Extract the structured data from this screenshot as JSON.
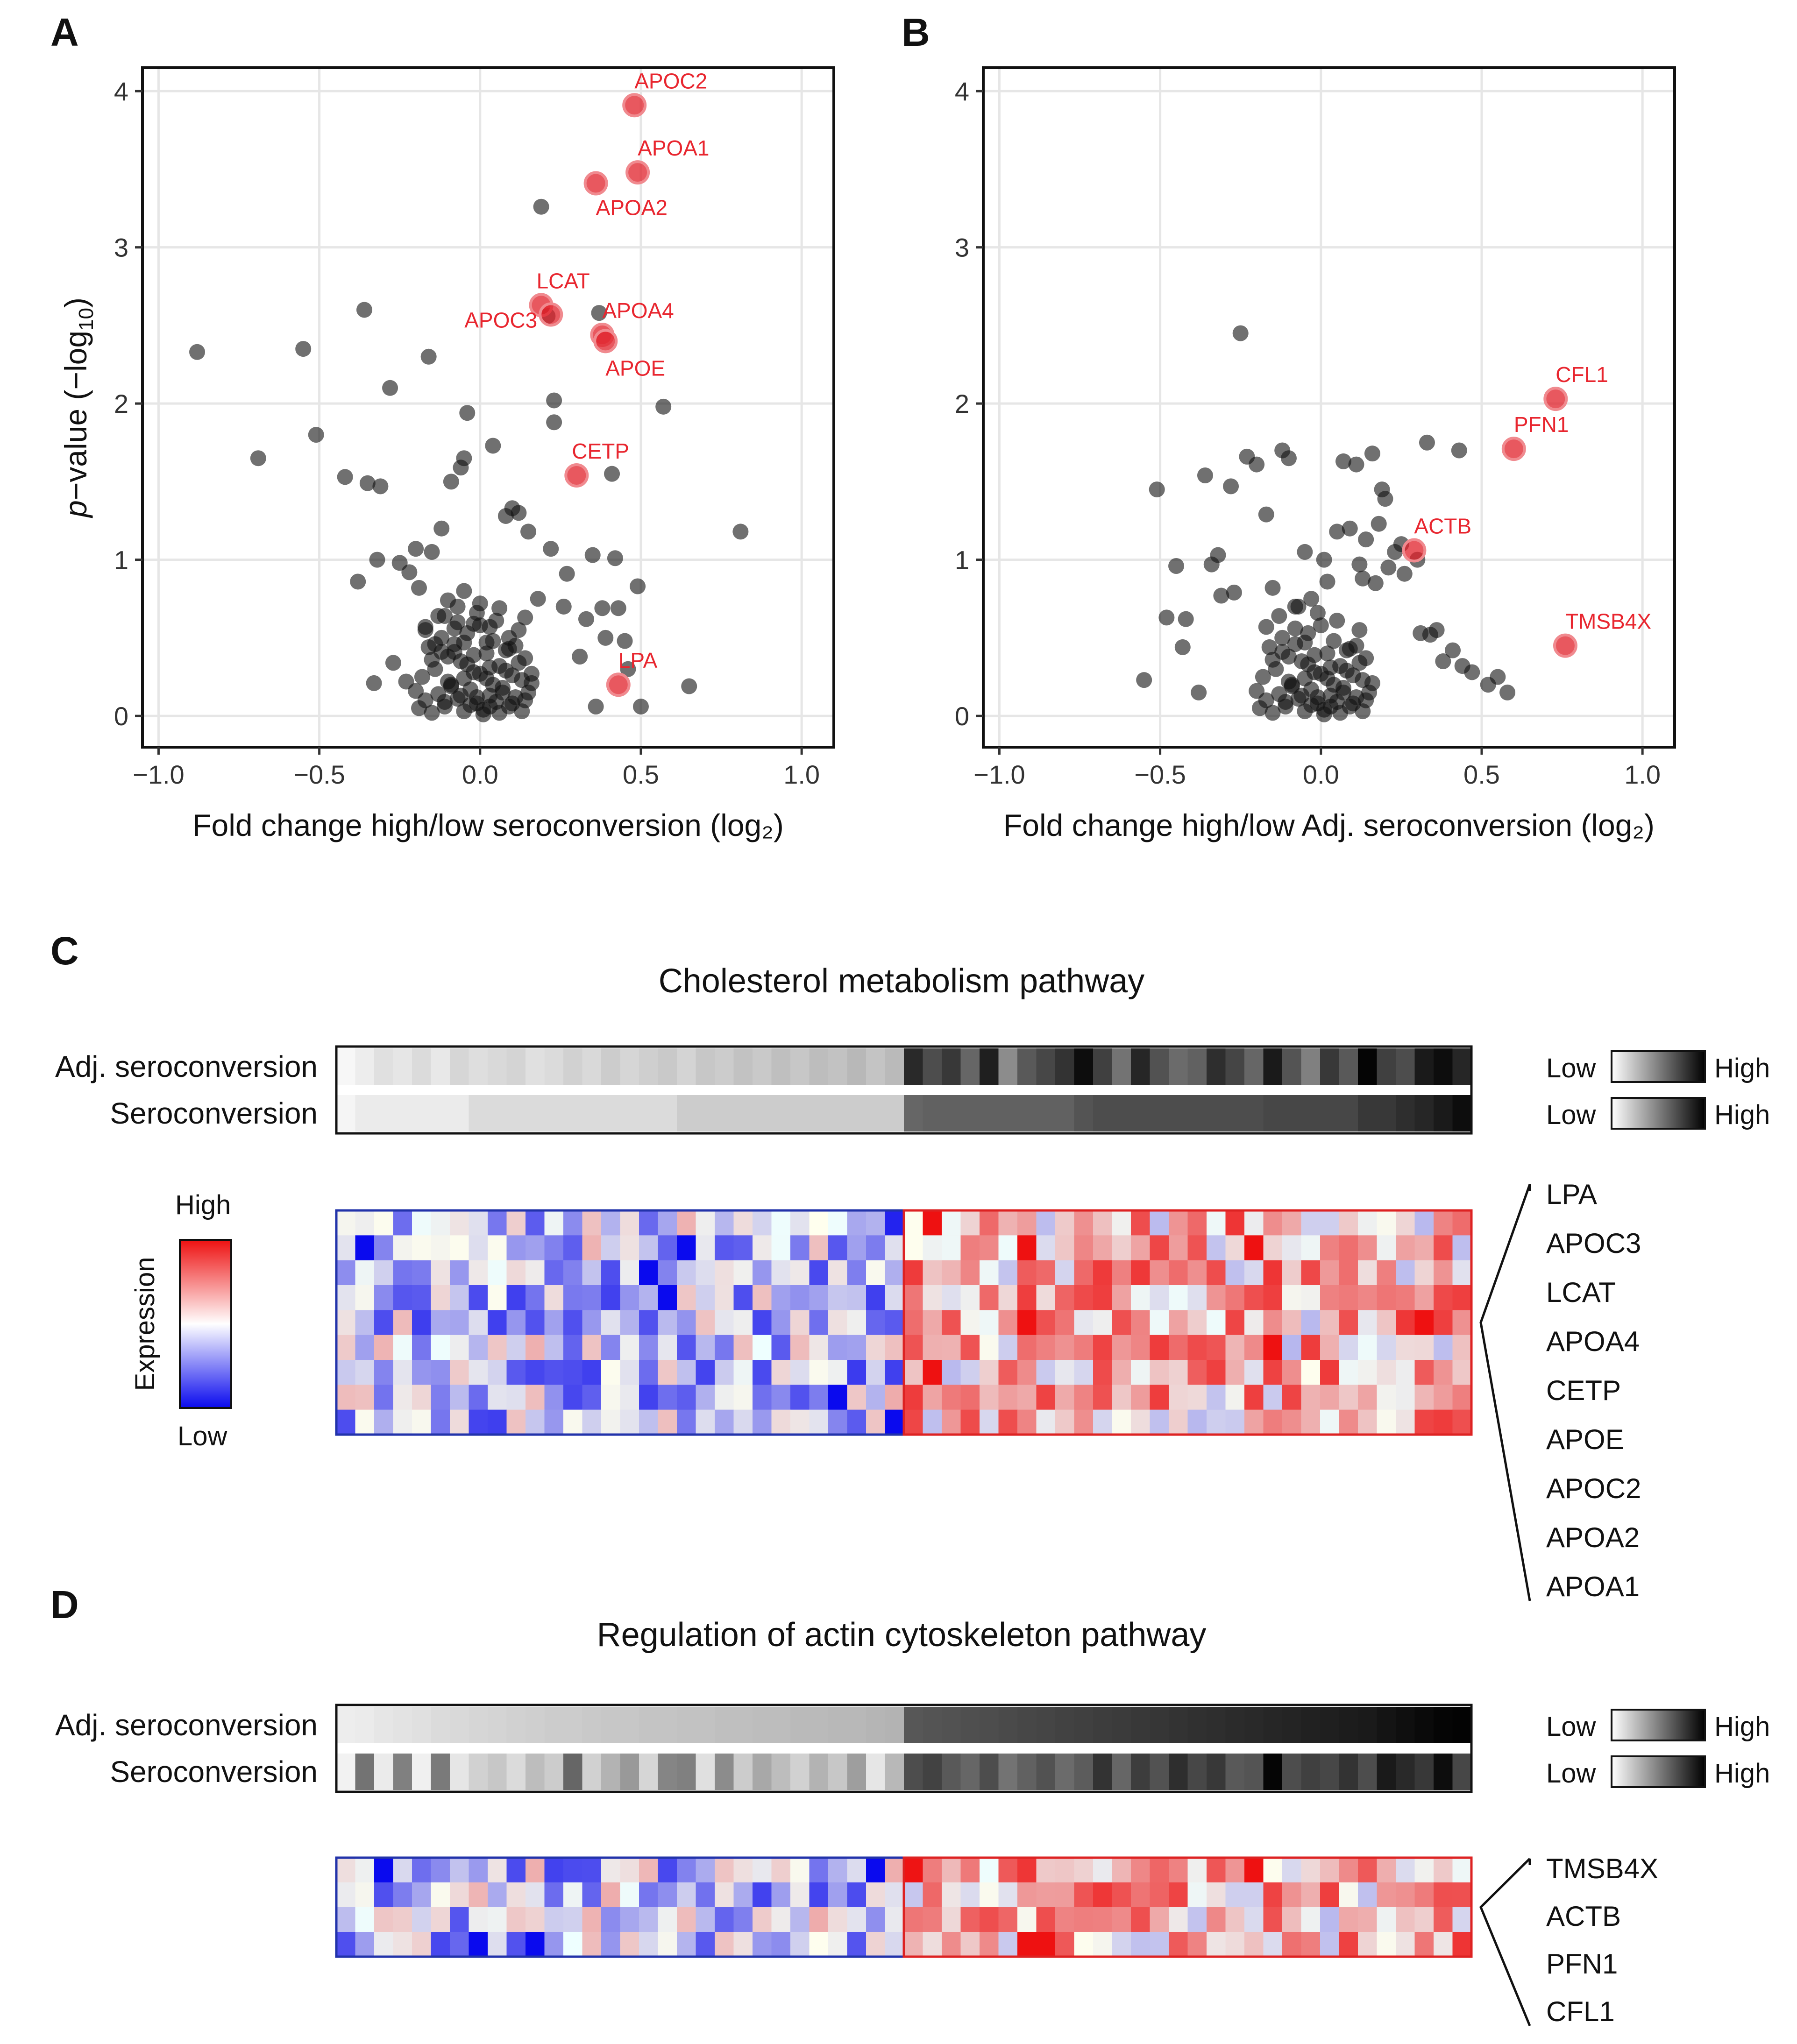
{
  "colors": {
    "point_black": "#111111",
    "point_red": "#e0202a",
    "label_red": "#e8262f",
    "grid": "#e6e6e6",
    "high_red": "#ee1111",
    "low_blue": "#0a0aee",
    "mid": "#ffffff",
    "group_low_frame": "#2233aa",
    "group_high_frame": "#dd2222"
  },
  "chart_data": [
    {
      "panel": "A",
      "type": "scatter",
      "xlabel": "Fold change high/low seroconversion (log₂)",
      "ylabel": "p−value (−log10)",
      "xlim": [
        -1.05,
        1.1
      ],
      "ylim": [
        -0.2,
        4.15
      ],
      "xticks": [
        -1.0,
        -0.5,
        0.0,
        0.5,
        1.0
      ],
      "xtick_labels": [
        "−1.0",
        "−0.5",
        "0.0",
        "0.5",
        "1.0"
      ],
      "yticks": [
        0,
        1,
        2,
        3,
        4
      ],
      "ytick_labels": [
        "0",
        "1",
        "2",
        "3",
        "4"
      ],
      "grid": true,
      "highlighted": [
        {
          "label": "APOC2",
          "x": 0.48,
          "y": 3.91
        },
        {
          "label": "APOA1",
          "x": 0.49,
          "y": 3.48
        },
        {
          "label": "APOA2",
          "x": 0.36,
          "y": 3.41
        },
        {
          "label": "LCAT",
          "x": 0.19,
          "y": 2.63
        },
        {
          "label": "APOC3",
          "x": 0.22,
          "y": 2.57
        },
        {
          "label": "APOA4",
          "x": 0.38,
          "y": 2.44
        },
        {
          "label": "APOE",
          "x": 0.39,
          "y": 2.4
        },
        {
          "label": "CETP",
          "x": 0.3,
          "y": 1.54
        },
        {
          "label": "LPA",
          "x": 0.43,
          "y": 0.2
        }
      ],
      "other_points": {
        "x": [
          -0.88,
          -0.69,
          -0.55,
          -0.51,
          -0.42,
          -0.36,
          -0.35,
          -0.31,
          -0.28,
          -0.16,
          -0.04,
          -0.05,
          -0.06,
          0.04,
          0.19,
          0.21,
          0.23,
          0.23,
          0.37,
          0.41,
          0.42,
          0.49,
          0.57,
          0.65,
          0.81,
          0.12,
          0.1,
          0.08,
          -0.09,
          -0.12,
          -0.15,
          -0.2,
          -0.25,
          -0.38,
          -0.32,
          -0.22,
          -0.19,
          -0.1,
          -0.05,
          0.0,
          0.06,
          0.14,
          0.18,
          0.27,
          0.33,
          0.35,
          0.38,
          0.45,
          0.5,
          -0.33,
          -0.27,
          -0.23,
          -0.14,
          -0.08,
          0.02,
          0.09,
          0.16,
          0.31,
          0.43,
          0.36,
          0.15,
          0.03,
          -0.02,
          -0.07,
          -0.11,
          -0.17,
          0.22,
          0.26,
          0.46,
          0.39
        ],
        "y": [
          2.33,
          1.65,
          2.35,
          1.8,
          1.53,
          2.6,
          1.49,
          1.47,
          2.1,
          2.3,
          1.94,
          1.65,
          1.59,
          1.73,
          3.26,
          2.56,
          2.02,
          1.88,
          2.58,
          1.55,
          1.01,
          0.83,
          1.98,
          0.19,
          1.18,
          1.3,
          1.33,
          1.28,
          1.5,
          1.2,
          1.05,
          1.07,
          0.98,
          0.86,
          1.0,
          0.92,
          0.82,
          0.74,
          0.8,
          0.72,
          0.69,
          0.63,
          0.75,
          0.91,
          0.62,
          1.03,
          0.69,
          0.48,
          0.06,
          0.21,
          0.34,
          0.22,
          0.46,
          0.41,
          0.47,
          0.5,
          0.27,
          0.38,
          0.69,
          0.06,
          1.18,
          0.57,
          0.59,
          0.6,
          0.64,
          0.55,
          1.07,
          0.7,
          0.3,
          0.5
        ]
      },
      "dense_cluster_points": {
        "x": [
          -0.19,
          -0.17,
          -0.15,
          -0.13,
          -0.11,
          -0.09,
          -0.07,
          -0.05,
          -0.03,
          -0.01,
          0.01,
          0.03,
          0.05,
          0.07,
          0.09,
          0.11,
          0.13,
          0.15,
          -0.18,
          -0.14,
          -0.1,
          -0.06,
          -0.02,
          0.02,
          0.06,
          0.1,
          0.14,
          -0.16,
          -0.12,
          -0.08,
          -0.04,
          0.0,
          0.04,
          0.08,
          0.12,
          -0.2,
          0.16,
          -0.13,
          -0.07,
          -0.01,
          0.05,
          0.11,
          -0.1,
          -0.04,
          0.02,
          0.08,
          -0.15,
          -0.09,
          -0.03,
          0.03,
          0.09,
          0.13,
          -0.06,
          0.0,
          0.06,
          -0.11,
          -0.05,
          0.01,
          0.07,
          -0.02,
          0.04,
          -0.08,
          0.1,
          -0.12,
          0.12,
          -0.17,
          0.14,
          -0.01,
          0.03,
          -0.05
        ],
        "y": [
          0.05,
          0.1,
          0.02,
          0.14,
          0.06,
          0.2,
          0.11,
          0.03,
          0.17,
          0.08,
          0.04,
          0.13,
          0.09,
          0.18,
          0.06,
          0.12,
          0.03,
          0.15,
          0.25,
          0.3,
          0.22,
          0.35,
          0.28,
          0.4,
          0.32,
          0.26,
          0.37,
          0.44,
          0.5,
          0.46,
          0.53,
          0.58,
          0.48,
          0.42,
          0.55,
          0.16,
          0.21,
          0.64,
          0.7,
          0.66,
          0.61,
          0.45,
          0.38,
          0.33,
          0.24,
          0.29,
          0.36,
          0.19,
          0.07,
          0.31,
          0.43,
          0.23,
          0.13,
          0.27,
          0.02,
          0.09,
          0.47,
          0.01,
          0.15,
          0.39,
          0.2,
          0.56,
          0.08,
          0.41,
          0.34,
          0.57,
          0.1,
          0.12,
          0.06,
          0.24
        ]
      }
    },
    {
      "panel": "B",
      "type": "scatter",
      "xlabel": "Fold change high/low Adj. seroconversion (log₂)",
      "ylabel": "",
      "xlim": [
        -1.05,
        1.1
      ],
      "ylim": [
        -0.2,
        4.15
      ],
      "xticks": [
        -1.0,
        -0.5,
        0.0,
        0.5,
        1.0
      ],
      "xtick_labels": [
        "−1.0",
        "−0.5",
        "0.0",
        "0.5",
        "1.0"
      ],
      "yticks": [
        0,
        1,
        2,
        3,
        4
      ],
      "ytick_labels": [
        "0",
        "1",
        "2",
        "3",
        "4"
      ],
      "grid": true,
      "highlighted": [
        {
          "label": "CFL1",
          "x": 0.73,
          "y": 2.03
        },
        {
          "label": "PFN1",
          "x": 0.6,
          "y": 1.71
        },
        {
          "label": "ACTB",
          "x": 0.29,
          "y": 1.06
        },
        {
          "label": "TMSB4X",
          "x": 0.76,
          "y": 0.45
        }
      ],
      "other_points": {
        "x": [
          -0.25,
          -0.51,
          -0.45,
          -0.42,
          -0.36,
          -0.32,
          -0.28,
          -0.23,
          -0.2,
          -0.17,
          -0.12,
          -0.1,
          0.07,
          0.11,
          0.16,
          0.19,
          0.2,
          0.33,
          0.43,
          0.05,
          0.09,
          0.14,
          0.18,
          0.25,
          0.34,
          0.41,
          0.55,
          0.58,
          0.52,
          0.47,
          0.44,
          0.36,
          0.31,
          -0.55,
          -0.48,
          -0.43,
          -0.38,
          -0.34,
          -0.31,
          -0.27,
          0.21,
          0.26,
          0.3,
          0.38,
          0.23,
          0.13,
          0.02,
          -0.03,
          -0.08,
          -0.15,
          0.01,
          -0.05,
          0.12,
          0.17
        ],
        "y": [
          2.45,
          1.45,
          0.96,
          0.62,
          1.54,
          1.03,
          1.47,
          1.66,
          1.61,
          1.29,
          1.7,
          1.65,
          1.63,
          1.61,
          1.68,
          1.45,
          1.39,
          1.75,
          1.7,
          1.18,
          1.2,
          1.13,
          1.23,
          1.1,
          0.52,
          0.42,
          0.25,
          0.15,
          0.2,
          0.28,
          0.32,
          0.55,
          0.53,
          0.23,
          0.63,
          0.44,
          0.15,
          0.97,
          0.77,
          0.79,
          0.95,
          0.91,
          1.0,
          0.35,
          1.05,
          0.88,
          0.86,
          0.75,
          0.7,
          0.82,
          1.0,
          1.05,
          0.97,
          0.85
        ]
      },
      "dense_cluster_points": {
        "x": [
          -0.19,
          -0.17,
          -0.15,
          -0.13,
          -0.11,
          -0.09,
          -0.07,
          -0.05,
          -0.03,
          -0.01,
          0.01,
          0.03,
          0.05,
          0.07,
          0.09,
          0.11,
          0.13,
          0.15,
          -0.18,
          -0.14,
          -0.1,
          -0.06,
          -0.02,
          0.02,
          0.06,
          0.1,
          0.14,
          -0.16,
          -0.12,
          -0.08,
          -0.04,
          0.0,
          0.04,
          0.08,
          0.12,
          -0.2,
          0.16,
          -0.13,
          -0.07,
          -0.01,
          0.05,
          0.11,
          -0.1,
          -0.04,
          0.02,
          0.08,
          -0.15,
          -0.09,
          -0.03,
          0.03,
          0.09,
          0.13,
          -0.06,
          0.0,
          0.06,
          -0.11,
          -0.05,
          0.01,
          0.07,
          -0.02,
          0.04,
          -0.08,
          0.1,
          -0.12,
          0.12,
          -0.17,
          0.14,
          -0.01,
          0.03,
          -0.05
        ],
        "y": [
          0.05,
          0.1,
          0.02,
          0.14,
          0.06,
          0.2,
          0.11,
          0.03,
          0.17,
          0.08,
          0.04,
          0.13,
          0.09,
          0.18,
          0.06,
          0.12,
          0.03,
          0.15,
          0.25,
          0.3,
          0.22,
          0.35,
          0.28,
          0.4,
          0.32,
          0.26,
          0.37,
          0.44,
          0.5,
          0.46,
          0.53,
          0.58,
          0.48,
          0.42,
          0.55,
          0.16,
          0.21,
          0.64,
          0.7,
          0.66,
          0.61,
          0.45,
          0.38,
          0.33,
          0.24,
          0.29,
          0.36,
          0.19,
          0.07,
          0.31,
          0.43,
          0.23,
          0.13,
          0.27,
          0.02,
          0.09,
          0.47,
          0.01,
          0.15,
          0.39,
          0.2,
          0.56,
          0.08,
          0.41,
          0.34,
          0.57,
          0.1,
          0.12,
          0.06,
          0.24
        ]
      }
    },
    {
      "panel": "C",
      "type": "heatmap",
      "title": "Cholesterol metabolism pathway",
      "annotation_rows": [
        "Adj. seroconversion",
        "Seroconversion"
      ],
      "genes": [
        "LPA",
        "APOC3",
        "LCAT",
        "APOA4",
        "CETP",
        "APOE",
        "APOC2",
        "APOA2",
        "APOA1"
      ],
      "n_samples": 60,
      "n_low_group": 30,
      "adj_seroconversion_gray": [
        0.97,
        0.93,
        0.88,
        0.9,
        0.86,
        0.91,
        0.84,
        0.87,
        0.85,
        0.83,
        0.88,
        0.86,
        0.82,
        0.85,
        0.8,
        0.84,
        0.81,
        0.79,
        0.83,
        0.78,
        0.8,
        0.76,
        0.79,
        0.75,
        0.78,
        0.74,
        0.76,
        0.72,
        0.77,
        0.73,
        0.16,
        0.3,
        0.22,
        0.4,
        0.12,
        0.55,
        0.35,
        0.28,
        0.2,
        0.05,
        0.25,
        0.45,
        0.15,
        0.32,
        0.42,
        0.38,
        0.18,
        0.27,
        0.4,
        0.1,
        0.33,
        0.5,
        0.22,
        0.35,
        0.02,
        0.25,
        0.3,
        0.1,
        0.05,
        0.15
      ],
      "seroconversion_gray": [
        0.96,
        0.92,
        0.92,
        0.92,
        0.92,
        0.92,
        0.92,
        0.86,
        0.86,
        0.86,
        0.86,
        0.86,
        0.86,
        0.86,
        0.86,
        0.86,
        0.86,
        0.86,
        0.8,
        0.8,
        0.8,
        0.8,
        0.8,
        0.8,
        0.8,
        0.8,
        0.8,
        0.8,
        0.8,
        0.8,
        0.4,
        0.38,
        0.38,
        0.38,
        0.38,
        0.38,
        0.38,
        0.38,
        0.38,
        0.33,
        0.3,
        0.3,
        0.3,
        0.3,
        0.3,
        0.3,
        0.3,
        0.3,
        0.3,
        0.28,
        0.28,
        0.28,
        0.28,
        0.28,
        0.22,
        0.22,
        0.18,
        0.15,
        0.1,
        0.05
      ],
      "legend": {
        "high": "High",
        "low": "Low",
        "label": "Expression"
      }
    },
    {
      "panel": "D",
      "type": "heatmap",
      "title": "Regulation of actin cytoskeleton pathway",
      "annotation_rows": [
        "Adj. seroconversion",
        "Seroconversion"
      ],
      "genes": [
        "TMSB4X",
        "ACTB",
        "PFN1",
        "CFL1"
      ],
      "n_samples": 60,
      "n_low_group": 30,
      "adj_seroconversion_gray": [
        0.93,
        0.92,
        0.9,
        0.89,
        0.88,
        0.86,
        0.85,
        0.84,
        0.83,
        0.82,
        0.81,
        0.8,
        0.8,
        0.79,
        0.78,
        0.78,
        0.77,
        0.77,
        0.76,
        0.76,
        0.75,
        0.75,
        0.74,
        0.74,
        0.73,
        0.73,
        0.72,
        0.72,
        0.71,
        0.7,
        0.34,
        0.33,
        0.32,
        0.31,
        0.3,
        0.29,
        0.28,
        0.27,
        0.26,
        0.25,
        0.24,
        0.23,
        0.22,
        0.21,
        0.2,
        0.19,
        0.18,
        0.17,
        0.16,
        0.15,
        0.14,
        0.13,
        0.12,
        0.11,
        0.1,
        0.08,
        0.06,
        0.04,
        0.02,
        0.01
      ],
      "seroconversion_gray": [
        0.95,
        0.45,
        0.92,
        0.5,
        0.94,
        0.48,
        0.9,
        0.82,
        0.78,
        0.86,
        0.74,
        0.8,
        0.4,
        0.82,
        0.7,
        0.6,
        0.84,
        0.52,
        0.5,
        0.88,
        0.55,
        0.8,
        0.66,
        0.74,
        0.82,
        0.7,
        0.78,
        0.62,
        0.9,
        0.72,
        0.3,
        0.26,
        0.35,
        0.4,
        0.3,
        0.45,
        0.38,
        0.32,
        0.42,
        0.36,
        0.2,
        0.4,
        0.24,
        0.32,
        0.18,
        0.28,
        0.22,
        0.35,
        0.33,
        0.02,
        0.3,
        0.25,
        0.28,
        0.2,
        0.3,
        0.1,
        0.16,
        0.22,
        0.05,
        0.28
      ],
      "legend": {
        "high": "High",
        "low": "Low"
      }
    }
  ],
  "figure": {
    "panel_letters": [
      "A",
      "B",
      "C",
      "D"
    ]
  }
}
